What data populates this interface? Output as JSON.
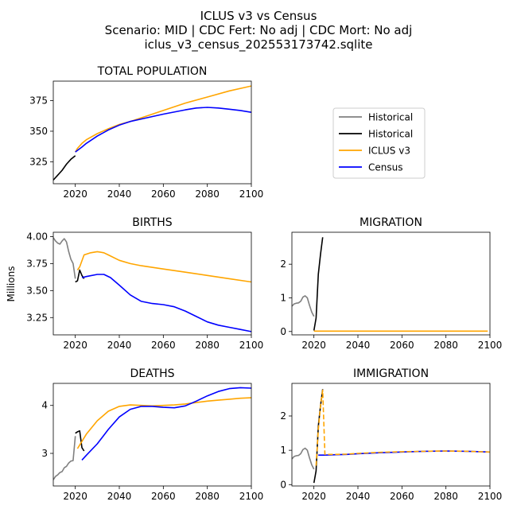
{
  "figure": {
    "title_line1": "ICLUS v3 vs Census",
    "title_line2": "Scenario: MID | CDC Fert: No adj | CDC Mort: No adj",
    "title_line3": "iclus_v3_census_202553173742.sqlite",
    "shared_ylabel": "Millions"
  },
  "legend": {
    "placement": "right of TOTAL POPULATION",
    "entries": [
      {
        "label": "Historical",
        "color": "#808080",
        "dash": "solid"
      },
      {
        "label": "Historical",
        "color": "#000000",
        "dash": "solid"
      },
      {
        "label": "ICLUS v3",
        "color": "#ffa500",
        "dash": "solid"
      },
      {
        "label": "Census",
        "color": "#0000ff",
        "dash": "solid"
      }
    ]
  },
  "colors": {
    "historical_gray": "#808080",
    "historical_black": "#000000",
    "iclus": "#ffa500",
    "census": "#0000ff"
  },
  "chart_data": [
    {
      "id": "total_population",
      "type": "line",
      "title": "TOTAL POPULATION",
      "xlim": [
        2010,
        2100
      ],
      "ylim": [
        307,
        391
      ],
      "xticks": [
        2020,
        2040,
        2060,
        2080,
        2100
      ],
      "yticks": [
        325,
        350,
        375
      ],
      "series": [
        {
          "name": "Historical",
          "color": "#000000",
          "dash": "solid",
          "points": [
            [
              2010,
              310
            ],
            [
              2012,
              314
            ],
            [
              2014,
              318
            ],
            [
              2016,
              323
            ],
            [
              2018,
              327
            ],
            [
              2020,
              330
            ]
          ]
        },
        {
          "name": "ICLUS v3",
          "color": "#ffa500",
          "dash": "solid",
          "points": [
            [
              2020,
              333
            ],
            [
              2021,
              336
            ],
            [
              2023,
              340
            ],
            [
              2025,
              343
            ],
            [
              2030,
              348
            ],
            [
              2035,
              352
            ],
            [
              2040,
              355.5
            ],
            [
              2045,
              358
            ],
            [
              2050,
              361
            ],
            [
              2060,
              367
            ],
            [
              2070,
              373
            ],
            [
              2080,
              378
            ],
            [
              2090,
              383
            ],
            [
              2100,
              387
            ]
          ]
        },
        {
          "name": "Census",
          "color": "#0000ff",
          "dash": "solid",
          "points": [
            [
              2020,
              333
            ],
            [
              2023,
              337
            ],
            [
              2025,
              340
            ],
            [
              2030,
              346
            ],
            [
              2035,
              351
            ],
            [
              2040,
              355
            ],
            [
              2045,
              358
            ],
            [
              2050,
              360
            ],
            [
              2060,
              364
            ],
            [
              2070,
              367.5
            ],
            [
              2075,
              369
            ],
            [
              2080,
              369.5
            ],
            [
              2085,
              369
            ],
            [
              2090,
              368
            ],
            [
              2095,
              367
            ],
            [
              2100,
              365.5
            ]
          ]
        }
      ]
    },
    {
      "id": "births",
      "type": "line",
      "title": "BIRTHS",
      "xlim": [
        2010,
        2100
      ],
      "ylim": [
        3.09,
        4.04
      ],
      "xticks": [
        2020,
        2040,
        2060,
        2080,
        2100
      ],
      "yticks": [
        3.25,
        3.5,
        3.75,
        4.0
      ],
      "ytick_labels": [
        "3.25",
        "3.50",
        "3.75",
        "4.00"
      ],
      "series": [
        {
          "name": "Historical",
          "color": "#808080",
          "dash": "solid",
          "points": [
            [
              2010,
              3.99
            ],
            [
              2011,
              3.96
            ],
            [
              2012,
              3.94
            ],
            [
              2013,
              3.93
            ],
            [
              2014,
              3.96
            ],
            [
              2015,
              3.98
            ],
            [
              2016,
              3.95
            ],
            [
              2017,
              3.86
            ],
            [
              2018,
              3.79
            ],
            [
              2019,
              3.75
            ],
            [
              2020,
              3.61
            ]
          ]
        },
        {
          "name": "Historical",
          "color": "#000000",
          "dash": "solid",
          "points": [
            [
              2020,
              3.58
            ],
            [
              2021,
              3.59
            ],
            [
              2022,
              3.69
            ],
            [
              2023,
              3.64
            ],
            [
              2024,
              3.61
            ]
          ]
        },
        {
          "name": "ICLUS v3",
          "color": "#ffa500",
          "dash": "solid",
          "points": [
            [
              2021,
              3.69
            ],
            [
              2022,
              3.72
            ],
            [
              2024,
              3.83
            ],
            [
              2027,
              3.85
            ],
            [
              2030,
              3.86
            ],
            [
              2033,
              3.85
            ],
            [
              2035,
              3.83
            ],
            [
              2040,
              3.78
            ],
            [
              2045,
              3.75
            ],
            [
              2050,
              3.73
            ],
            [
              2060,
              3.7
            ],
            [
              2070,
              3.67
            ],
            [
              2080,
              3.64
            ],
            [
              2090,
              3.61
            ],
            [
              2100,
              3.58
            ]
          ]
        },
        {
          "name": "Census",
          "color": "#0000ff",
          "dash": "solid",
          "points": [
            [
              2023,
              3.62
            ],
            [
              2025,
              3.63
            ],
            [
              2030,
              3.65
            ],
            [
              2033,
              3.65
            ],
            [
              2036,
              3.62
            ],
            [
              2040,
              3.55
            ],
            [
              2045,
              3.46
            ],
            [
              2050,
              3.4
            ],
            [
              2055,
              3.38
            ],
            [
              2060,
              3.37
            ],
            [
              2065,
              3.35
            ],
            [
              2070,
              3.31
            ],
            [
              2075,
              3.26
            ],
            [
              2080,
              3.21
            ],
            [
              2085,
              3.18
            ],
            [
              2090,
              3.16
            ],
            [
              2095,
              3.14
            ],
            [
              2100,
              3.12
            ]
          ]
        }
      ]
    },
    {
      "id": "migration",
      "type": "line",
      "title": "MIGRATION",
      "xlim": [
        2010,
        2100
      ],
      "ylim": [
        -0.1,
        2.95
      ],
      "xticks": [
        2020,
        2040,
        2060,
        2080,
        2100
      ],
      "yticks": [
        0,
        1,
        2
      ],
      "series": [
        {
          "name": "Historical",
          "color": "#808080",
          "dash": "solid",
          "points": [
            [
              2010,
              0.75
            ],
            [
              2011,
              0.82
            ],
            [
              2012,
              0.84
            ],
            [
              2013,
              0.85
            ],
            [
              2014,
              0.9
            ],
            [
              2015,
              1.02
            ],
            [
              2016,
              1.06
            ],
            [
              2017,
              1.0
            ],
            [
              2018,
              0.78
            ],
            [
              2019,
              0.58
            ],
            [
              2020,
              0.45
            ]
          ]
        },
        {
          "name": "Historical",
          "color": "#000000",
          "dash": "solid",
          "points": [
            [
              2020,
              0.03
            ],
            [
              2021,
              0.4
            ],
            [
              2022,
              1.7
            ],
            [
              2023,
              2.3
            ],
            [
              2024,
              2.8
            ]
          ]
        },
        {
          "name": "ICLUS v3",
          "color": "#ffa500",
          "dash": "solid",
          "points": [
            [
              2020,
              0.01
            ],
            [
              2030,
              0.01
            ],
            [
              2040,
              0.01
            ],
            [
              2060,
              0.01
            ],
            [
              2080,
              0.01
            ],
            [
              2099,
              0.01
            ]
          ]
        }
      ]
    },
    {
      "id": "deaths",
      "type": "line",
      "title": "DEATHS",
      "xlim": [
        2010,
        2100
      ],
      "ylim": [
        2.32,
        4.46
      ],
      "xticks": [
        2020,
        2040,
        2060,
        2080,
        2100
      ],
      "yticks": [
        3,
        4
      ],
      "series": [
        {
          "name": "Historical",
          "color": "#808080",
          "dash": "solid",
          "points": [
            [
              2010,
              2.45
            ],
            [
              2011,
              2.52
            ],
            [
              2012,
              2.55
            ],
            [
              2013,
              2.6
            ],
            [
              2014,
              2.62
            ],
            [
              2015,
              2.7
            ],
            [
              2016,
              2.73
            ],
            [
              2017,
              2.8
            ],
            [
              2018,
              2.84
            ],
            [
              2019,
              2.85
            ],
            [
              2020,
              3.36
            ]
          ]
        },
        {
          "name": "Historical",
          "color": "#000000",
          "dash": "solid",
          "points": [
            [
              2020,
              3.42
            ],
            [
              2021,
              3.45
            ],
            [
              2022,
              3.47
            ],
            [
              2023,
              3.12
            ],
            [
              2024,
              3.05
            ]
          ]
        },
        {
          "name": "ICLUS v3",
          "color": "#ffa500",
          "dash": "solid",
          "points": [
            [
              2021,
              3.1
            ],
            [
              2023,
              3.25
            ],
            [
              2025,
              3.4
            ],
            [
              2030,
              3.68
            ],
            [
              2035,
              3.88
            ],
            [
              2040,
              3.98
            ],
            [
              2045,
              4.01
            ],
            [
              2050,
              4.0
            ],
            [
              2055,
              3.99
            ],
            [
              2060,
              4.0
            ],
            [
              2065,
              4.01
            ],
            [
              2070,
              4.03
            ],
            [
              2075,
              4.06
            ],
            [
              2080,
              4.09
            ],
            [
              2085,
              4.11
            ],
            [
              2090,
              4.13
            ],
            [
              2095,
              4.15
            ],
            [
              2100,
              4.16
            ]
          ]
        },
        {
          "name": "Census",
          "color": "#0000ff",
          "dash": "solid",
          "points": [
            [
              2023,
              2.86
            ],
            [
              2025,
              2.96
            ],
            [
              2030,
              3.2
            ],
            [
              2035,
              3.5
            ],
            [
              2040,
              3.76
            ],
            [
              2045,
              3.92
            ],
            [
              2050,
              3.98
            ],
            [
              2055,
              3.98
            ],
            [
              2060,
              3.96
            ],
            [
              2065,
              3.95
            ],
            [
              2070,
              3.99
            ],
            [
              2075,
              4.09
            ],
            [
              2080,
              4.2
            ],
            [
              2085,
              4.29
            ],
            [
              2090,
              4.35
            ],
            [
              2095,
              4.37
            ],
            [
              2100,
              4.36
            ]
          ]
        }
      ]
    },
    {
      "id": "immigration",
      "type": "line",
      "title": "IMMIGRATION",
      "xlim": [
        2010,
        2100
      ],
      "ylim": [
        -0.04,
        2.95
      ],
      "xticks": [
        2020,
        2040,
        2060,
        2080,
        2100
      ],
      "yticks": [
        0,
        1,
        2
      ],
      "series": [
        {
          "name": "Historical",
          "color": "#808080",
          "dash": "solid",
          "points": [
            [
              2010,
              0.75
            ],
            [
              2011,
              0.82
            ],
            [
              2012,
              0.84
            ],
            [
              2013,
              0.85
            ],
            [
              2014,
              0.9
            ],
            [
              2015,
              1.02
            ],
            [
              2016,
              1.06
            ],
            [
              2017,
              1.0
            ],
            [
              2018,
              0.78
            ],
            [
              2019,
              0.58
            ],
            [
              2020,
              0.45
            ]
          ]
        },
        {
          "name": "Historical",
          "color": "#000000",
          "dash": "solid",
          "points": [
            [
              2020,
              0.05
            ],
            [
              2021,
              0.4
            ],
            [
              2022,
              1.7
            ],
            [
              2023,
              2.3
            ],
            [
              2024,
              2.78
            ]
          ]
        },
        {
          "name": "Census",
          "color": "#0000ff",
          "dash": "solid",
          "points": [
            [
              2022,
              0.86
            ],
            [
              2025,
              0.86
            ],
            [
              2030,
              0.87
            ],
            [
              2035,
              0.88
            ],
            [
              2040,
              0.9
            ],
            [
              2050,
              0.93
            ],
            [
              2060,
              0.95
            ],
            [
              2070,
              0.97
            ],
            [
              2080,
              0.98
            ],
            [
              2090,
              0.97
            ],
            [
              2100,
              0.95
            ]
          ]
        },
        {
          "name": "ICLUS v3",
          "color": "#ffa500",
          "dash": "dashed",
          "points": [
            [
              2021,
              0.55
            ],
            [
              2022,
              1.6
            ],
            [
              2023,
              2.3
            ],
            [
              2024,
              2.75
            ],
            [
              2025,
              0.88
            ],
            [
              2030,
              0.88
            ],
            [
              2035,
              0.89
            ],
            [
              2040,
              0.91
            ],
            [
              2050,
              0.94
            ],
            [
              2060,
              0.96
            ],
            [
              2070,
              0.97
            ],
            [
              2080,
              0.98
            ],
            [
              2090,
              0.97
            ],
            [
              2100,
              0.95
            ]
          ]
        }
      ]
    }
  ]
}
